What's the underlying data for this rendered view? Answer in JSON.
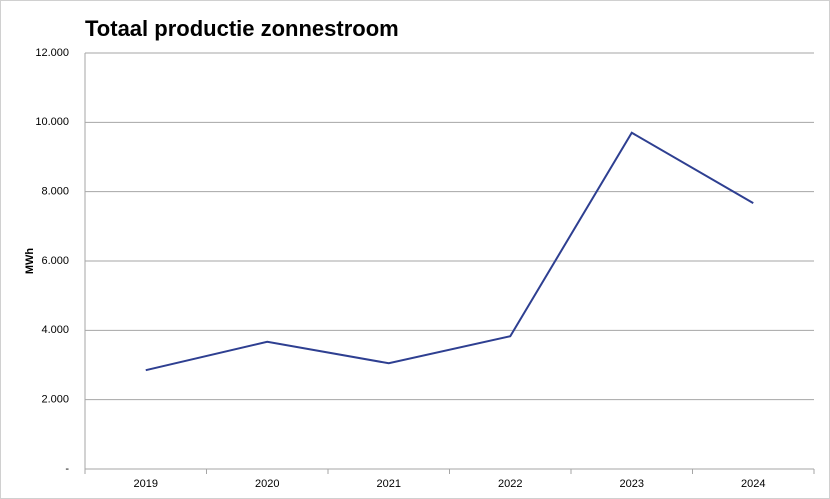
{
  "chart_data": {
    "type": "line",
    "title": "Totaal productie zonnestroom",
    "ylabel": "MWh",
    "categories": [
      "2019",
      "2020",
      "2021",
      "2022",
      "2023",
      "2024"
    ],
    "series": [
      {
        "name": "Totaal productie zonnestroom",
        "color": "#2e3f91",
        "values": [
          2850,
          3670,
          3050,
          3830,
          9700,
          7670
        ]
      }
    ],
    "ylim": [
      0,
      12000
    ],
    "yticks": [
      {
        "value": 0,
        "label": "-"
      },
      {
        "value": 2000,
        "label": "2.000"
      },
      {
        "value": 4000,
        "label": "4.000"
      },
      {
        "value": 6000,
        "label": "6.000"
      },
      {
        "value": 8000,
        "label": "8.000"
      },
      {
        "value": 10000,
        "label": "10.000"
      },
      {
        "value": 12000,
        "label": "12.000"
      }
    ],
    "grid": true
  }
}
